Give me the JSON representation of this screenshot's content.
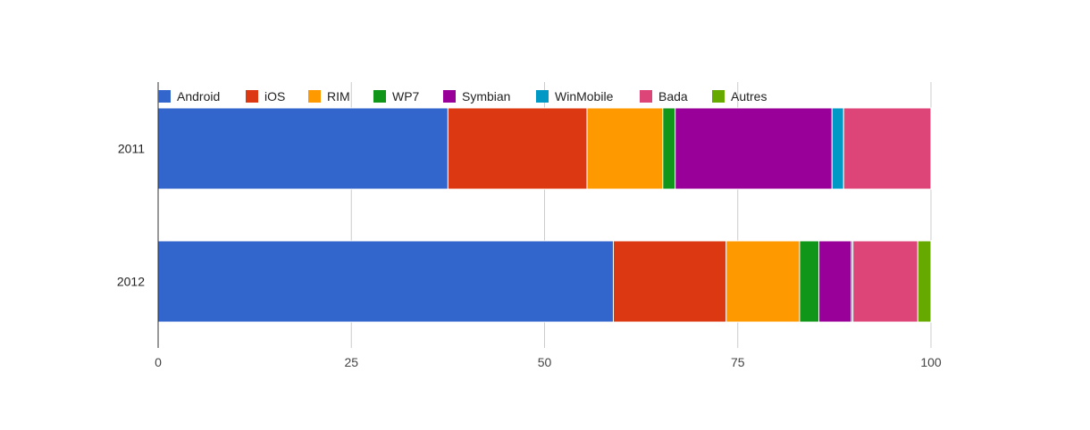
{
  "chart_data": {
    "type": "bar",
    "orientation": "horizontal",
    "stacked": true,
    "categories": [
      "2011",
      "2012"
    ],
    "series": [
      {
        "name": "Android",
        "color": "#3366cc",
        "values": [
          37.5,
          58.9
        ]
      },
      {
        "name": "iOS",
        "color": "#dc3912",
        "values": [
          18.0,
          14.6
        ]
      },
      {
        "name": "RIM",
        "color": "#ff9900",
        "values": [
          9.8,
          9.5
        ]
      },
      {
        "name": "WP7",
        "color": "#109618",
        "values": [
          1.6,
          2.5
        ]
      },
      {
        "name": "Symbian",
        "color": "#990099",
        "values": [
          20.3,
          4.2
        ]
      },
      {
        "name": "WinMobile",
        "color": "#0099c6",
        "values": [
          1.5,
          0.2
        ]
      },
      {
        "name": "Bada",
        "color": "#dd4477",
        "values": [
          11.3,
          8.4
        ]
      },
      {
        "name": "Autres",
        "color": "#66aa00",
        "values": [
          0.0,
          1.7
        ]
      }
    ],
    "xlim": [
      0,
      100
    ],
    "xticks": [
      0,
      25,
      50,
      75,
      100
    ],
    "grid": true,
    "legend": "top"
  }
}
